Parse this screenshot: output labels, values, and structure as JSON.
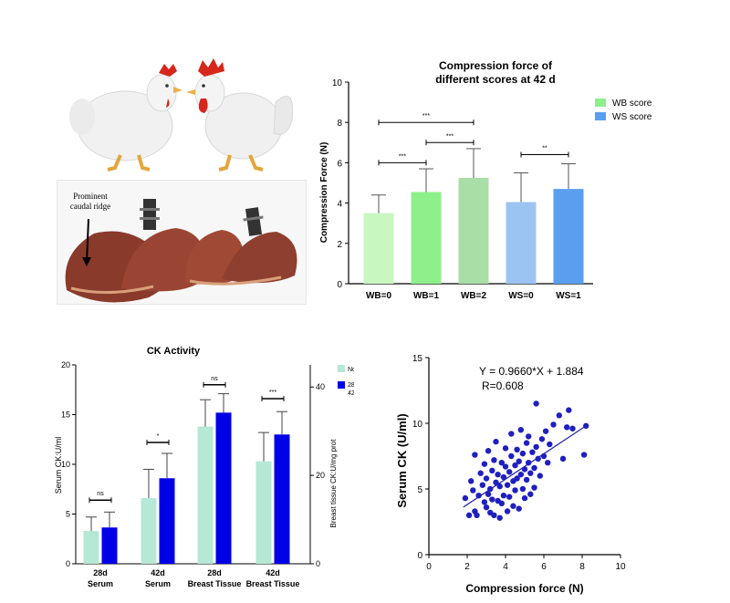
{
  "photos": {
    "caption": "Prominent caudal ridge"
  },
  "chart_data": [
    {
      "type": "bar",
      "title": [
        "Compression force of",
        "different scores at 42 d"
      ],
      "ylabel": "Compression Force (N)",
      "ylim": [
        0,
        10
      ],
      "yticks": [
        0,
        2,
        4,
        6,
        8,
        10
      ],
      "categories": [
        "WB=0",
        "WB=1",
        "WB=2",
        "WS=0",
        "WS=1"
      ],
      "values": [
        3.5,
        4.55,
        5.25,
        4.05,
        4.7
      ],
      "errors": [
        0.9,
        1.15,
        1.45,
        1.45,
        1.25
      ],
      "bar_colors": [
        "#c8f7c0",
        "#8ef08a",
        "#a9dea7",
        "#9cc4f2",
        "#5a9ef0"
      ],
      "legend": [
        {
          "label": "WB score",
          "color": "#8ef08a"
        },
        {
          "label": "WS score",
          "color": "#5a9ef0"
        }
      ],
      "significance": [
        {
          "from": 0,
          "to": 2,
          "y": 8.0,
          "label": "***"
        },
        {
          "from": 0,
          "to": 1,
          "y": 6.0,
          "label": "***"
        },
        {
          "from": 1,
          "to": 2,
          "y": 7.0,
          "label": "***"
        },
        {
          "from": 3,
          "to": 4,
          "y": 6.4,
          "label": "**"
        }
      ]
    },
    {
      "type": "bar",
      "title": "CK Activity",
      "ylabel": "Serum CK:U/ml",
      "y2label": "Breast tissue CK:U/mg prot",
      "ylim": [
        0,
        20
      ],
      "yticks": [
        0,
        5,
        10,
        15,
        20
      ],
      "y2ticks": [
        0,
        20,
        40
      ],
      "categories": [
        [
          "28d",
          "Serum"
        ],
        [
          "42d",
          "Serum"
        ],
        [
          "28d",
          "Breast Tissue"
        ],
        [
          "42d",
          "Breast Tissue"
        ]
      ],
      "series": [
        {
          "name": "Normal",
          "color": "#b5e8d5",
          "values": [
            3.3,
            6.6,
            13.8,
            10.3
          ],
          "errors": [
            1.4,
            2.9,
            2.7,
            2.9
          ]
        },
        {
          "name": "28 d Mild and 42 d Moderate",
          "color": "#0000e6",
          "values": [
            3.65,
            8.6,
            15.2,
            13.0
          ],
          "errors": [
            1.55,
            2.5,
            1.9,
            2.3
          ]
        }
      ],
      "significance": [
        {
          "group": 0,
          "y": 6.4,
          "label": "ns"
        },
        {
          "group": 1,
          "y": 12.2,
          "label": "*"
        },
        {
          "group": 2,
          "y": 18.0,
          "label": "ns"
        },
        {
          "group": 3,
          "y": 16.6,
          "label": "***"
        }
      ]
    },
    {
      "type": "scatter",
      "xlabel": "Compression force (N)",
      "ylabel": "Serum  CK (U/ml)",
      "xlim": [
        0,
        10
      ],
      "ylim": [
        0,
        15
      ],
      "xticks": [
        0,
        2,
        4,
        6,
        8,
        10
      ],
      "yticks": [
        0,
        5,
        10,
        15
      ],
      "equation": "Y = 0.9660*X + 1.884",
      "r": "R=0.608",
      "point_color": "#1f1fc0",
      "fit": {
        "slope": 0.966,
        "intercept": 1.884,
        "x_range": [
          1.8,
          8.2
        ]
      },
      "points": [
        [
          1.9,
          4.3
        ],
        [
          2.1,
          3.0
        ],
        [
          2.2,
          5.6
        ],
        [
          2.3,
          4.9
        ],
        [
          2.4,
          7.6
        ],
        [
          2.4,
          3.3
        ],
        [
          2.5,
          3.0
        ],
        [
          2.6,
          4.5
        ],
        [
          2.7,
          6.2
        ],
        [
          2.8,
          5.3
        ],
        [
          2.9,
          4.0
        ],
        [
          2.9,
          6.9
        ],
        [
          3.0,
          3.6
        ],
        [
          3.0,
          5.8
        ],
        [
          3.1,
          4.6
        ],
        [
          3.1,
          7.9
        ],
        [
          3.2,
          3.2
        ],
        [
          3.2,
          5.0
        ],
        [
          3.3,
          6.4
        ],
        [
          3.3,
          4.2
        ],
        [
          3.4,
          7.2
        ],
        [
          3.4,
          3.0
        ],
        [
          3.5,
          5.5
        ],
        [
          3.5,
          8.6
        ],
        [
          3.6,
          4.1
        ],
        [
          3.6,
          6.1
        ],
        [
          3.7,
          2.8
        ],
        [
          3.7,
          5.2
        ],
        [
          3.8,
          7.0
        ],
        [
          3.8,
          3.9
        ],
        [
          3.9,
          5.9
        ],
        [
          3.9,
          4.5
        ],
        [
          4.0,
          8.1
        ],
        [
          4.0,
          6.7
        ],
        [
          4.1,
          3.3
        ],
        [
          4.1,
          5.3
        ],
        [
          4.2,
          6.3
        ],
        [
          4.2,
          4.4
        ],
        [
          4.3,
          7.5
        ],
        [
          4.3,
          9.2
        ],
        [
          4.4,
          5.6
        ],
        [
          4.4,
          3.7
        ],
        [
          4.5,
          6.8
        ],
        [
          4.5,
          4.9
        ],
        [
          4.6,
          8.0
        ],
        [
          4.6,
          5.8
        ],
        [
          4.7,
          7.1
        ],
        [
          4.7,
          3.5
        ],
        [
          4.8,
          6.1
        ],
        [
          4.8,
          9.5
        ],
        [
          4.9,
          5.0
        ],
        [
          4.9,
          7.7
        ],
        [
          5.0,
          6.5
        ],
        [
          5.0,
          4.3
        ],
        [
          5.1,
          8.5
        ],
        [
          5.1,
          5.7
        ],
        [
          5.2,
          7.0
        ],
        [
          5.2,
          9.0
        ],
        [
          5.3,
          6.2
        ],
        [
          5.3,
          4.6
        ],
        [
          5.4,
          7.8
        ],
        [
          5.5,
          6.6
        ],
        [
          5.5,
          5.1
        ],
        [
          5.6,
          8.2
        ],
        [
          5.6,
          11.5
        ],
        [
          5.7,
          7.3
        ],
        [
          5.8,
          6.0
        ],
        [
          5.9,
          8.8
        ],
        [
          6.0,
          7.5
        ],
        [
          6.1,
          9.4
        ],
        [
          6.2,
          7.0
        ],
        [
          6.3,
          8.4
        ],
        [
          6.5,
          9.9
        ],
        [
          6.8,
          10.6
        ],
        [
          7.0,
          7.3
        ],
        [
          7.2,
          9.7
        ],
        [
          7.3,
          11.0
        ],
        [
          7.5,
          9.6
        ],
        [
          8.1,
          7.6
        ],
        [
          8.2,
          9.8
        ]
      ]
    }
  ]
}
